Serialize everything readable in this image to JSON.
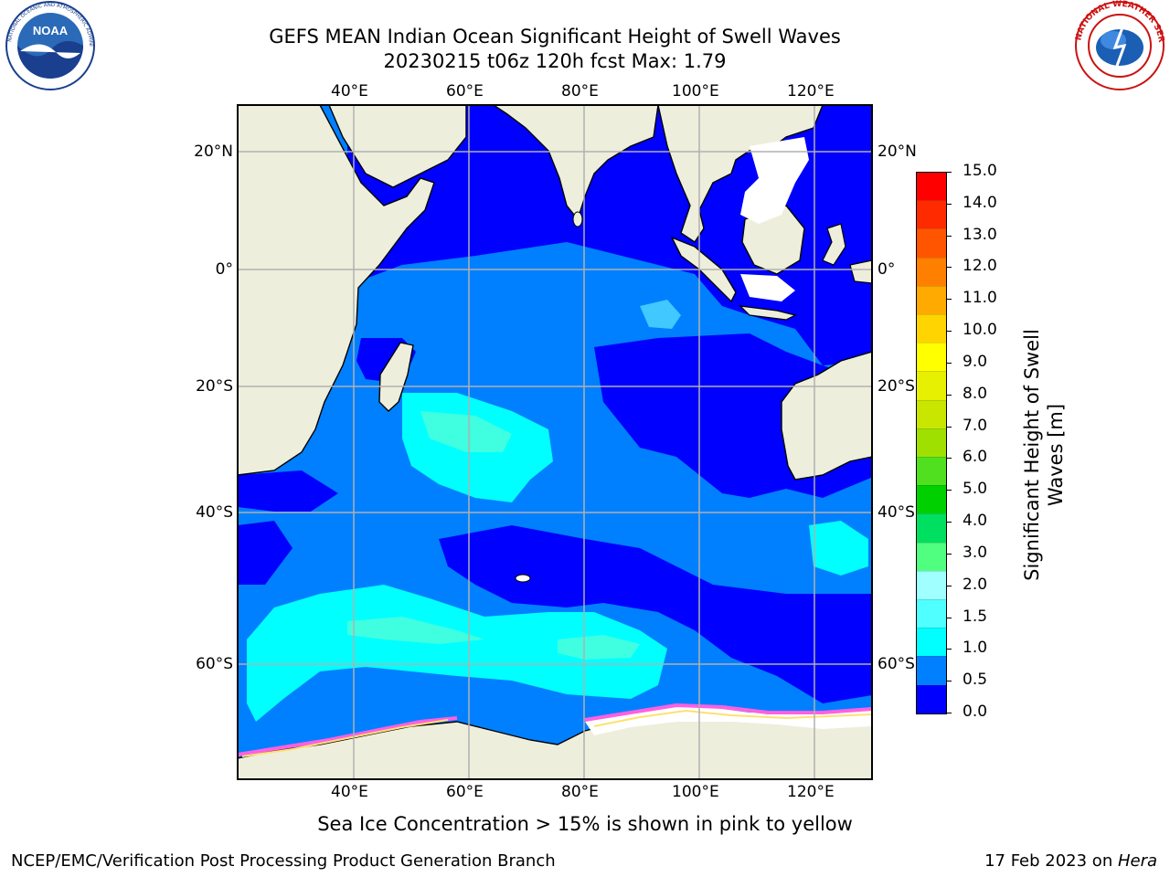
{
  "header": {
    "title_line1": "GEFS MEAN Indian Ocean Significant Height of Swell Waves",
    "title_line2": "20230215 t06z 120h fcst   Max: 1.79"
  },
  "logos": {
    "left": {
      "icon": "noaa-logo",
      "text": "NOAA",
      "ring_text": "NATIONAL OCEANIC AND ATMOSPHERIC ADMINISTRATION · U.S. DEPARTMENT OF COMMERCE"
    },
    "right": {
      "icon": "nws-logo",
      "ring_text": "NATIONAL WEATHER SERVICE"
    }
  },
  "map": {
    "top_lon_labels": [
      "40°E",
      "60°E",
      "80°E",
      "100°E",
      "120°E"
    ],
    "bottom_lon_labels": [
      "40°E",
      "60°E",
      "80°E",
      "100°E",
      "120°E"
    ],
    "left_lat_labels": [
      "20°N",
      "0°",
      "20°S",
      "40°S",
      "60°S"
    ],
    "right_lat_labels": [
      "20°N",
      "0°",
      "20°S",
      "40°S",
      "60°S"
    ],
    "colors": {
      "land": "#eeeedd",
      "ocean_0_0_5": "#0000ff",
      "ocean_0_5_1": "#0080ff",
      "ocean_1_1_5": "#00ffff",
      "ocean_1_5_2": "#40ffe0",
      "ice_pink": "#ff60e0",
      "ice_yellow": "#ffe070",
      "grid": "#b0b0b0"
    }
  },
  "colorbar": {
    "label_line1": "Significant Height of Swell",
    "label_line2": "Waves [m]",
    "ticks": [
      "15.0",
      "14.0",
      "13.0",
      "12.0",
      "11.0",
      "10.0",
      "9.0",
      "8.0",
      "7.0",
      "6.0",
      "5.0",
      "4.0",
      "3.0",
      "2.0",
      "1.5",
      "1.0",
      "0.5",
      "0.0"
    ],
    "colors": [
      "#ff0000",
      "#ff2a00",
      "#ff5500",
      "#ff8000",
      "#ffaa00",
      "#ffd400",
      "#ffff00",
      "#e6f000",
      "#c8e600",
      "#a0e000",
      "#50e020",
      "#00d000",
      "#00e060",
      "#50ff80",
      "#a0ffff",
      "#50ffff",
      "#00ffff",
      "#0080ff",
      "#0000ff"
    ]
  },
  "caption": "Sea Ice Concentration > 15% is shown in pink to yellow",
  "footer": {
    "left": "NCEP/EMC/Verification Post Processing Product Generation Branch",
    "right_prefix": "17 Feb 2023 on ",
    "right_italic": "Hera"
  }
}
